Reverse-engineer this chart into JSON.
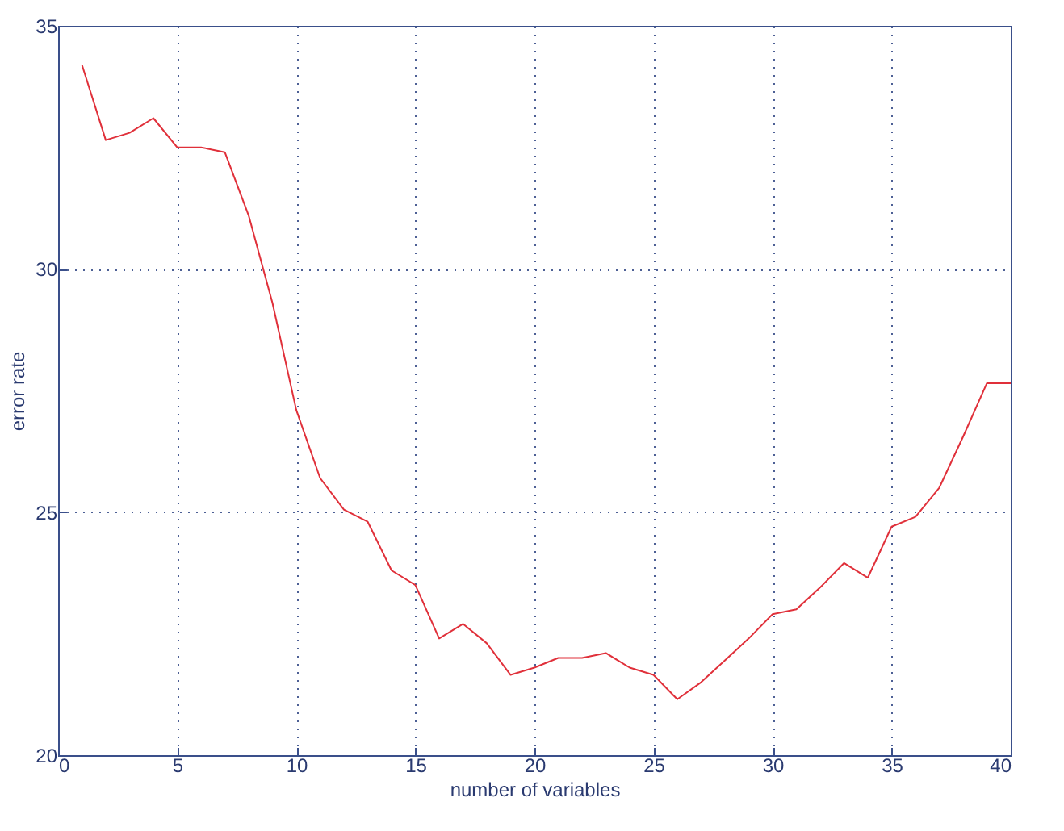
{
  "chart_data": {
    "type": "line",
    "xlabel": "number of variables",
    "ylabel": "error rate",
    "x": [
      1,
      2,
      3,
      4,
      5,
      6,
      7,
      8,
      9,
      10,
      11,
      12,
      13,
      14,
      15,
      16,
      17,
      18,
      19,
      20,
      21,
      22,
      23,
      24,
      25,
      26,
      27,
      28,
      29,
      30,
      31,
      32,
      33,
      34,
      35,
      36,
      37,
      38,
      39,
      40
    ],
    "series": [
      {
        "color": "#e0303a",
        "values": [
          34.2,
          32.65,
          32.8,
          33.1,
          32.5,
          32.5,
          32.4,
          31.1,
          29.3,
          27.1,
          25.7,
          25.05,
          24.8,
          23.8,
          23.5,
          22.4,
          22.7,
          22.3,
          21.65,
          21.8,
          22.0,
          22.0,
          22.1,
          21.8,
          21.65,
          21.15,
          21.5,
          21.95,
          22.4,
          22.9,
          23.0,
          23.45,
          23.95,
          23.65,
          24.7,
          24.9,
          25.5,
          26.55,
          27.65,
          27.65
        ]
      }
    ],
    "xlim": [
      0,
      40
    ],
    "xticks": [
      0,
      5,
      10,
      15,
      20,
      25,
      30,
      35,
      40
    ],
    "ylim": [
      20,
      35
    ],
    "yticks": [
      20,
      25,
      30,
      35
    ],
    "grid": true,
    "line_style": "solid",
    "marker": "none"
  }
}
